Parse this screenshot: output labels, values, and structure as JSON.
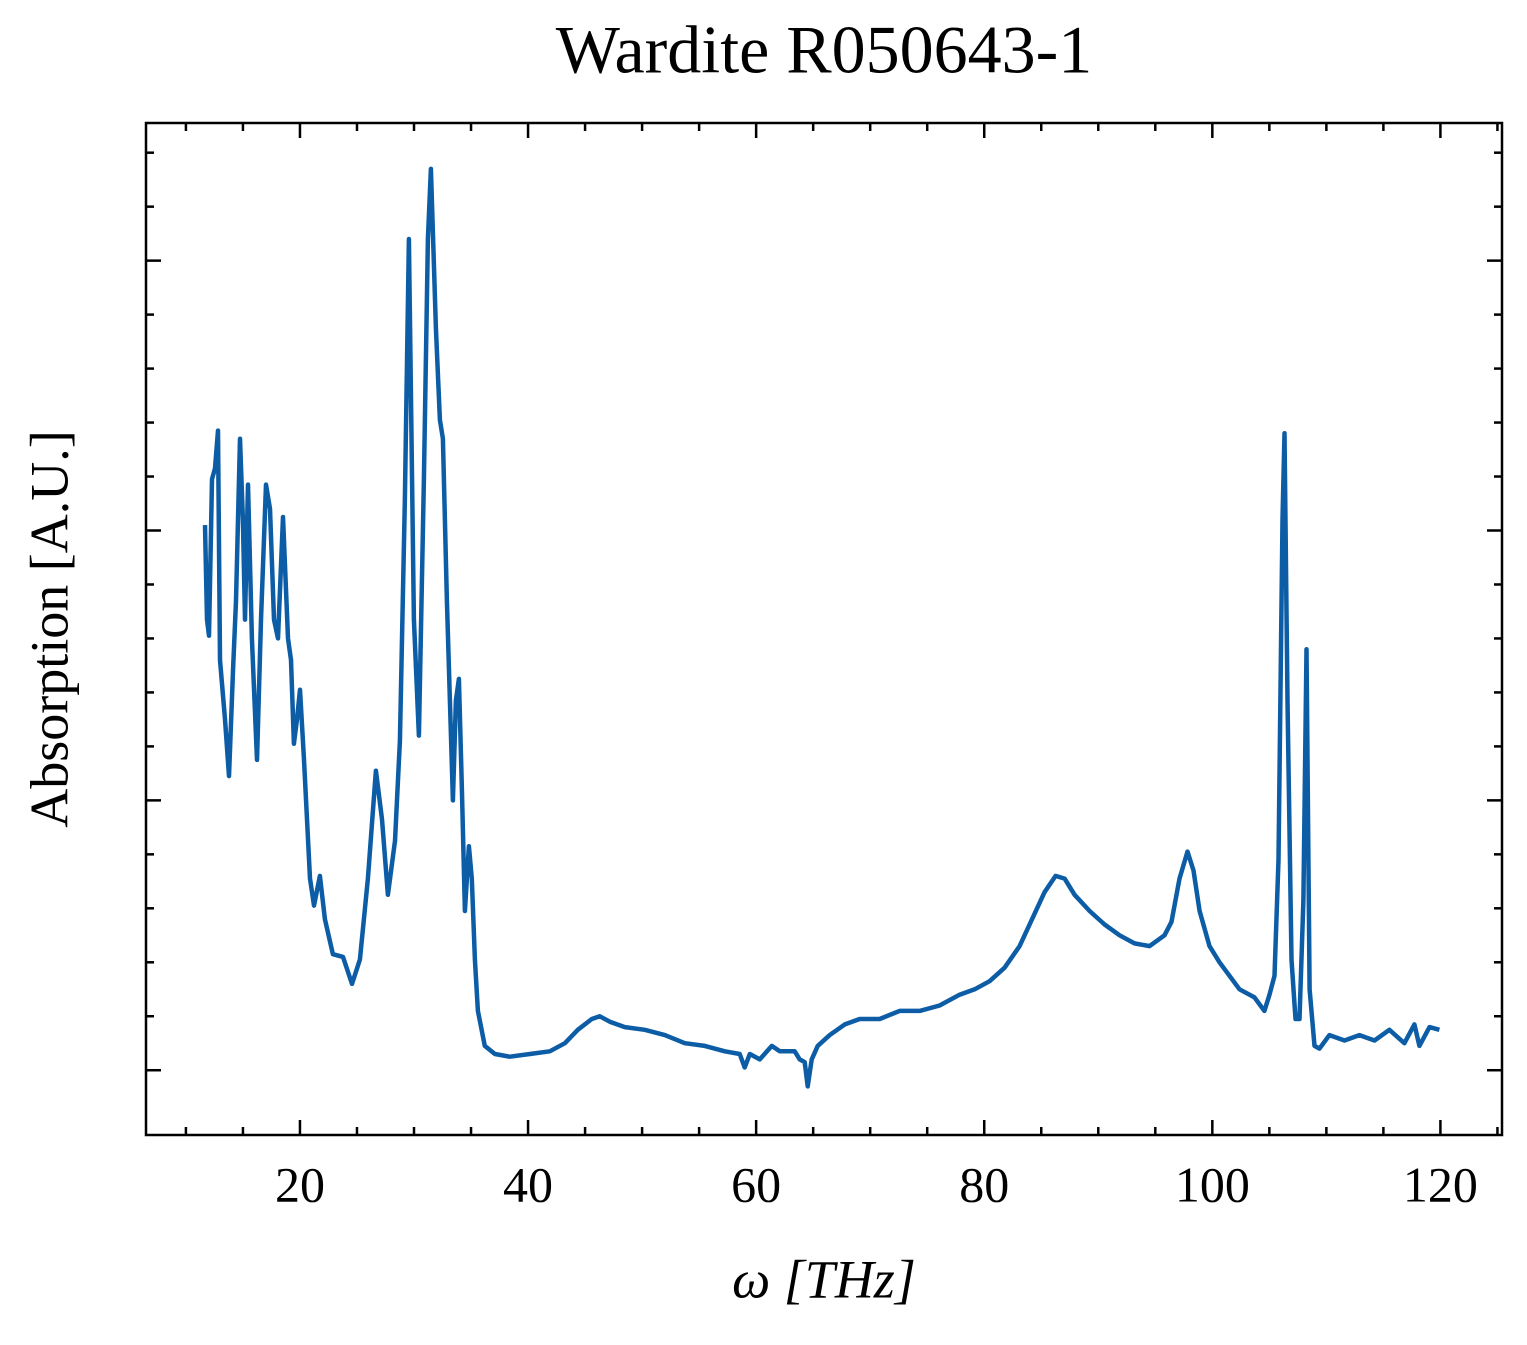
{
  "chart_data": {
    "type": "line",
    "title": "Wardite R050643-1",
    "x_label": "ω [THz]",
    "y_label": "Absorption [A.U.]",
    "xlim": [
      6.5,
      125.4
    ],
    "ylim": [
      -0.24,
      3.51
    ],
    "xticks": [
      20,
      40,
      60,
      80,
      100,
      120
    ],
    "xminor": [
      10,
      15,
      25,
      30,
      35,
      45,
      50,
      55,
      65,
      70,
      75,
      85,
      90,
      95,
      105,
      110,
      115,
      125
    ],
    "yticks": [
      0,
      1,
      2,
      3
    ],
    "yminor": [
      0.2,
      0.4,
      0.6,
      0.8,
      1.2,
      1.4,
      1.6,
      1.8,
      2.2,
      2.4,
      2.6,
      2.8,
      3.2,
      3.4
    ],
    "ytick_labels": false,
    "ticks_inward": true,
    "mirror_ticks": true,
    "series": [
      {
        "color": "#0c5da5",
        "x": [
          11.67,
          11.85,
          12.02,
          12.29,
          12.55,
          12.81,
          12.99,
          13.43,
          13.78,
          14.13,
          14.39,
          14.74,
          15.0,
          15.18,
          15.44,
          15.79,
          16.23,
          16.58,
          17.02,
          17.37,
          17.72,
          18.07,
          18.51,
          18.95,
          19.21,
          19.47,
          19.74,
          20,
          20.35,
          20.88,
          21.23,
          21.75,
          22.19,
          22.89,
          23.77,
          24.56,
          25.26,
          25.96,
          26.66,
          27.19,
          27.71,
          28.33,
          28.76,
          29.2,
          29.55,
          29.99,
          30.43,
          30.87,
          31.22,
          31.48,
          31.92,
          32.27,
          32.53,
          32.88,
          33.15,
          33.41,
          33.67,
          33.94,
          34.2,
          34.46,
          34.81,
          35.07,
          35.34,
          35.6,
          36.21,
          37.09,
          38.4,
          40.16,
          41.91,
          43.23,
          44.36,
          45.59,
          46.29,
          47.17,
          48.48,
          50.24,
          51.99,
          53.74,
          55.5,
          57.25,
          58.56,
          59.0,
          59.44,
          60.32,
          61.37,
          62.07,
          63.38,
          63.82,
          64.26,
          64.52,
          64.87,
          65.4,
          66.45,
          67.77,
          69.08,
          70.83,
          72.59,
          74.34,
          76.09,
          77.84,
          79.16,
          80.47,
          81.79,
          83.1,
          84.42,
          85.29,
          86.26,
          87.05,
          87.92,
          89.24,
          90.55,
          91.87,
          93.18,
          94.5,
          95.81,
          96.42,
          97.12,
          97.82,
          98.35,
          98.88,
          99.75,
          100.63,
          101.51,
          102.38,
          103.7,
          104.57,
          105.01,
          105.45,
          105.8,
          106.15,
          106.33,
          106.59,
          106.94,
          107.29,
          107.64,
          107.99,
          108.26,
          108.53,
          108.96,
          109.4,
          110.27,
          111.59,
          112.9,
          114.22,
          115.53,
          116.84,
          117.72,
          118.16,
          119.04,
          119.91
        ],
        "values": [
          2.02,
          1.67,
          1.61,
          2.19,
          2.23,
          2.37,
          1.52,
          1.3,
          1.09,
          1.48,
          1.74,
          2.34,
          2.04,
          1.67,
          2.17,
          1.6,
          1.15,
          1.67,
          2.17,
          2.08,
          1.67,
          1.6,
          2.05,
          1.6,
          1.52,
          1.21,
          1.3,
          1.41,
          1.15,
          0.71,
          0.61,
          0.72,
          0.56,
          0.43,
          0.42,
          0.32,
          0.41,
          0.71,
          1.11,
          0.93,
          0.65,
          0.85,
          1.22,
          2.12,
          3.08,
          1.67,
          1.24,
          2.19,
          3.08,
          3.34,
          2.75,
          2.41,
          2.34,
          1.74,
          1.37,
          1.0,
          1.37,
          1.45,
          1.04,
          0.59,
          0.83,
          0.71,
          0.41,
          0.22,
          0.09,
          0.06,
          0.05,
          0.06,
          0.07,
          0.1,
          0.15,
          0.19,
          0.2,
          0.18,
          0.16,
          0.15,
          0.13,
          0.1,
          0.09,
          0.07,
          0.06,
          0.01,
          0.06,
          0.04,
          0.09,
          0.07,
          0.07,
          0.04,
          0.03,
          -0.06,
          0.04,
          0.09,
          0.13,
          0.17,
          0.19,
          0.19,
          0.22,
          0.22,
          0.24,
          0.28,
          0.3,
          0.33,
          0.38,
          0.46,
          0.58,
          0.66,
          0.72,
          0.71,
          0.65,
          0.59,
          0.54,
          0.5,
          0.47,
          0.46,
          0.5,
          0.55,
          0.71,
          0.81,
          0.74,
          0.59,
          0.46,
          0.4,
          0.35,
          0.3,
          0.27,
          0.22,
          0.28,
          0.35,
          0.78,
          2.04,
          2.36,
          1.37,
          0.41,
          0.19,
          0.19,
          0.63,
          1.56,
          0.3,
          0.09,
          0.08,
          0.13,
          0.11,
          0.13,
          0.11,
          0.15,
          0.1,
          0.17,
          0.09,
          0.16,
          0.15
        ]
      }
    ]
  }
}
